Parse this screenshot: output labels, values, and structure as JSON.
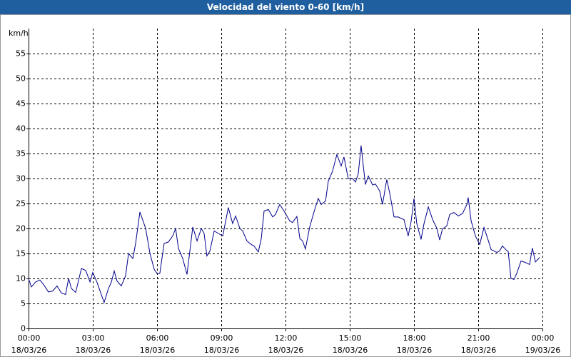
{
  "chart_data": {
    "type": "line",
    "title": "Velocidad del viento 0-60 [km/h]",
    "y_label": "km/h",
    "color": "#00008b",
    "grid": true,
    "xlim": [
      0,
      24
    ],
    "xticks": [
      {
        "value": 0,
        "label": "00:00",
        "date": "18/03/26"
      },
      {
        "value": 3,
        "label": "03:00",
        "date": "18/03/26"
      },
      {
        "value": 6,
        "label": "06:00",
        "date": "18/03/26"
      },
      {
        "value": 9,
        "label": "09:00",
        "date": "18/03/26"
      },
      {
        "value": 12,
        "label": "12:00",
        "date": "18/03/26"
      },
      {
        "value": 15,
        "label": "15:00",
        "date": "18/03/26"
      },
      {
        "value": 18,
        "label": "18:00",
        "date": "18/03/26"
      },
      {
        "value": 21,
        "label": "21:00",
        "date": "18/03/26"
      },
      {
        "value": 24,
        "label": "00:00",
        "date": "19/03/26"
      }
    ],
    "ylim": [
      0,
      60
    ],
    "yticks": [
      0,
      5,
      10,
      15,
      20,
      25,
      30,
      35,
      40,
      45,
      50,
      55
    ],
    "x": [
      0,
      0.13,
      0.33,
      0.53,
      0.73,
      0.93,
      1.13,
      1.33,
      1.53,
      1.73,
      1.87,
      2,
      2.2,
      2.47,
      2.67,
      2.87,
      3,
      3.2,
      3.33,
      3.53,
      3.73,
      3.87,
      4,
      4.13,
      4.33,
      4.53,
      4.67,
      4.87,
      5,
      5.2,
      5.47,
      5.67,
      5.87,
      6,
      6.13,
      6.33,
      6.53,
      6.73,
      6.87,
      7,
      7.2,
      7.4,
      7.67,
      7.87,
      8.07,
      8.2,
      8.33,
      8.47,
      8.67,
      8.87,
      9.07,
      9.33,
      9.53,
      9.67,
      9.87,
      10,
      10.2,
      10.4,
      10.53,
      10.73,
      10.87,
      11,
      11.2,
      11.4,
      11.53,
      11.73,
      11.93,
      12.2,
      12.33,
      12.53,
      12.67,
      12.8,
      12.93,
      13.13,
      13.33,
      13.53,
      13.67,
      13.87,
      14,
      14.2,
      14.4,
      14.6,
      14.73,
      14.93,
      15.13,
      15.27,
      15.4,
      15.53,
      15.73,
      15.87,
      16.07,
      16.2,
      16.4,
      16.53,
      16.73,
      16.87,
      17.07,
      17.27,
      17.4,
      17.53,
      17.73,
      17.87,
      18,
      18.13,
      18.33,
      18.47,
      18.67,
      18.87,
      19.07,
      19.2,
      19.33,
      19.53,
      19.67,
      19.87,
      20.07,
      20.27,
      20.47,
      20.53,
      20.67,
      20.87,
      21.07,
      21.27,
      21.47,
      21.6,
      21.87,
      22,
      22.13,
      22.33,
      22.4,
      22.53,
      22.67,
      22.8,
      23,
      23.2,
      23.4,
      23.53,
      23.67,
      23.87
    ],
    "values": [
      10,
      8.3,
      9.3,
      9.7,
      8.6,
      7.3,
      7.5,
      8.5,
      7.1,
      6.8,
      10,
      8,
      7.2,
      12,
      11.6,
      9.3,
      11.2,
      9.2,
      7.6,
      5.2,
      8,
      9.3,
      11.5,
      9.5,
      8.5,
      10.5,
      15,
      14,
      17,
      23.3,
      20,
      15,
      11.8,
      11,
      11,
      17,
      17.3,
      18.5,
      20,
      16,
      14,
      10.8,
      20.3,
      17.5,
      20,
      19,
      14.5,
      15.5,
      19.5,
      19,
      18.5,
      24.2,
      21,
      22.5,
      20,
      19.5,
      17.5,
      16.8,
      16.5,
      15.3,
      18,
      23.5,
      23.8,
      22.3,
      22.8,
      24.8,
      23.5,
      21.5,
      21.2,
      22.4,
      18,
      17.5,
      15.9,
      20.3,
      23.3,
      26,
      24.8,
      25.5,
      29.5,
      31.5,
      34.8,
      32.5,
      34.3,
      30,
      30,
      29.3,
      31,
      36.6,
      28.8,
      30.5,
      28.7,
      28.9,
      27.5,
      24.8,
      29.8,
      27,
      22.3,
      22.3,
      22,
      21.8,
      18.5,
      21.5,
      26,
      21,
      17.8,
      21,
      24.3,
      21.8,
      20,
      17.7,
      19.9,
      20.5,
      22.8,
      23.2,
      22.5,
      23,
      24.8,
      26.2,
      21.5,
      18.5,
      16.8,
      20.2,
      17.6,
      15.8,
      15.2,
      15.5,
      16.5,
      15.6,
      15.4,
      10,
      9.8,
      11,
      13.5,
      13.2,
      12.8,
      16.1,
      13.3,
      14.2
    ]
  }
}
